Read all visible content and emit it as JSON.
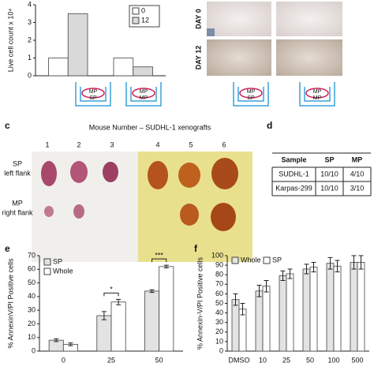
{
  "chart_data": [
    {
      "type": "bar",
      "ylabel": "Live cell count x 10⁴",
      "categories": [
        null,
        null
      ],
      "series": [
        {
          "name": "0",
          "color": "#ffffff",
          "values": [
            1,
            1
          ]
        },
        {
          "name": "12",
          "color": "#d9d9d9",
          "values": [
            3.5,
            0.5
          ]
        }
      ],
      "ylim": [
        0,
        4
      ],
      "yticks": [
        0,
        1,
        2,
        3,
        4
      ],
      "legend": "upper right"
    },
    {
      "type": "bar",
      "ylabel": "% AnnexinV/PI Positive cells",
      "categories": [
        "0",
        "25",
        "50"
      ],
      "series": [
        {
          "name": "SP",
          "color": "#e3e3e3",
          "values": [
            8,
            26,
            44
          ],
          "errors": [
            1,
            3,
            1
          ]
        },
        {
          "name": "Whole",
          "color": "#ffffff",
          "values": [
            5,
            36,
            62
          ],
          "errors": [
            1,
            2,
            1
          ]
        }
      ],
      "annotations": [
        null,
        "*",
        "***"
      ],
      "ylim": [
        0,
        70
      ],
      "yticks": [
        0,
        10,
        20,
        30,
        40,
        50,
        60,
        70
      ],
      "legend": "upper left"
    },
    {
      "type": "bar",
      "ylabel": "% Annexin-V/PI Positive cells",
      "categories": [
        "DMSO",
        "10",
        "25",
        "50",
        "100",
        "500"
      ],
      "series": [
        {
          "name": "Whole",
          "color": "#e3e3e3",
          "values": [
            54,
            63,
            79,
            86,
            92,
            93
          ],
          "errors": [
            6,
            6,
            5,
            5,
            6,
            7
          ]
        },
        {
          "name": "SP",
          "color": "#ffffff",
          "values": [
            44,
            68,
            81,
            88,
            89,
            93
          ],
          "errors": [
            6,
            6,
            5,
            5,
            6,
            7
          ]
        }
      ],
      "ylim": [
        0,
        100
      ],
      "yticks": [
        0,
        10,
        20,
        30,
        40,
        50,
        60,
        70,
        80,
        90,
        100
      ],
      "legend": "upper left"
    }
  ],
  "icons": [
    {
      "inner": "MP",
      "lower": "SP"
    },
    {
      "inner": "MP",
      "lower": "MP"
    },
    {
      "inner": "MP",
      "lower": "SP"
    },
    {
      "inner": "MP",
      "lower": "MP"
    }
  ],
  "photos": {
    "rows": [
      "DAY 0",
      "DAY 12"
    ]
  },
  "panel_c": {
    "letter": "c",
    "title": "Mouse Number – SUDHL-1 xenografts",
    "mice": [
      "1",
      "2",
      "3",
      "4",
      "5",
      "6"
    ],
    "sp_label": [
      "SP",
      "left flank"
    ],
    "mp_label": [
      "MP",
      "right flank"
    ]
  },
  "panel_d": {
    "letter": "d",
    "table": {
      "header": [
        "Sample",
        "SP",
        "MP"
      ],
      "rows": [
        [
          "SUDHL-1",
          "10/10",
          "4/10"
        ],
        [
          "Karpas-299",
          "10/10",
          "3/10"
        ]
      ]
    }
  },
  "panel_e": {
    "letter": "e"
  },
  "panel_f": {
    "letter": "f"
  }
}
